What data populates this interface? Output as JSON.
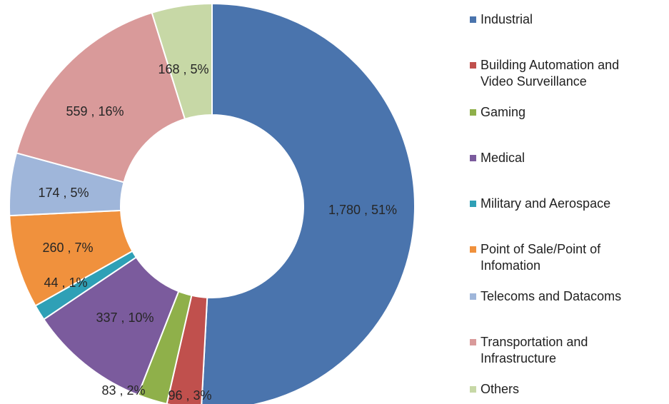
{
  "chart_data": {
    "type": "pie",
    "donut": true,
    "title": "",
    "legend_position": "right",
    "slices": [
      {
        "label": "Industrial",
        "value": 1780,
        "value_text": "1,780",
        "percent": "51%",
        "color": "#4a74ad"
      },
      {
        "label": "Building Automation and\nVideo Surveillance",
        "value": 96,
        "value_text": "96",
        "percent": "3%",
        "color": "#c0504d"
      },
      {
        "label": "Gaming",
        "value": 83,
        "value_text": "83",
        "percent": "2%",
        "color": "#8fb04a"
      },
      {
        "label": "Medical",
        "value": 337,
        "value_text": "337",
        "percent": "10%",
        "color": "#7b5b9d"
      },
      {
        "label": "Military and Aerospace",
        "value": 44,
        "value_text": "44",
        "percent": "1%",
        "color": "#2fa0b6"
      },
      {
        "label": "Point of Sale/Point of\nInfomation",
        "value": 260,
        "value_text": "260",
        "percent": "7%",
        "color": "#f0913d"
      },
      {
        "label": "Telecoms and Datacoms",
        "value": 174,
        "value_text": "174",
        "percent": "5%",
        "color": "#9fb6da"
      },
      {
        "label": "Transportation and\nInfrastructure",
        "value": 559,
        "value_text": "559",
        "percent": "16%",
        "color": "#d99a9a"
      },
      {
        "label": "Others",
        "value": 168,
        "value_text": "168",
        "percent": "5%",
        "color": "#c7d8a6"
      }
    ]
  }
}
